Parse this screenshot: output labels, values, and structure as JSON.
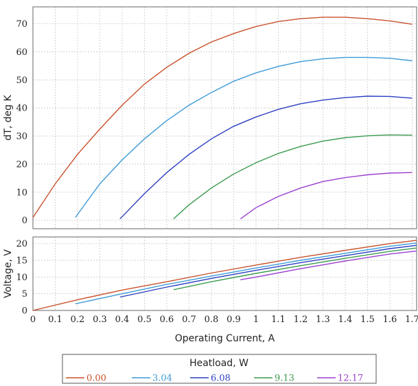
{
  "chart_data": [
    {
      "type": "line",
      "ylabel": "dT, deg K",
      "xlim": [
        0,
        1.72
      ],
      "ylim": [
        -3,
        76
      ],
      "yticks": [
        0,
        10,
        20,
        30,
        40,
        50,
        60,
        70
      ],
      "grid": true,
      "series": [
        {
          "name": "0.00",
          "color": "#c8502a",
          "x": [
            0.0,
            0.1,
            0.2,
            0.3,
            0.4,
            0.5,
            0.6,
            0.7,
            0.8,
            0.9,
            1.0,
            1.1,
            1.2,
            1.3,
            1.4,
            1.5,
            1.6,
            1.7
          ],
          "y": [
            1,
            13,
            23.5,
            32.5,
            41,
            48.5,
            54.5,
            59.5,
            63.5,
            66.5,
            69,
            70.8,
            71.8,
            72.3,
            72.3,
            71.8,
            71,
            69.8
          ]
        },
        {
          "name": "3.04",
          "color": "#3c9ad8",
          "x": [
            0.19,
            0.3,
            0.4,
            0.5,
            0.6,
            0.7,
            0.8,
            0.9,
            1.0,
            1.1,
            1.2,
            1.3,
            1.4,
            1.5,
            1.6,
            1.7
          ],
          "y": [
            1,
            13,
            21.5,
            29,
            35.5,
            41,
            45.5,
            49.5,
            52.5,
            54.8,
            56.5,
            57.5,
            58,
            58,
            57.7,
            56.8
          ]
        },
        {
          "name": "6.08",
          "color": "#2a3ec0",
          "x": [
            0.39,
            0.5,
            0.6,
            0.7,
            0.8,
            0.9,
            1.0,
            1.1,
            1.2,
            1.3,
            1.4,
            1.5,
            1.6,
            1.7
          ],
          "y": [
            0.5,
            9.5,
            17,
            23.5,
            29,
            33.5,
            36.8,
            39.5,
            41.5,
            42.8,
            43.7,
            44.2,
            44.1,
            43.5
          ]
        },
        {
          "name": "9.13",
          "color": "#3a9a4e",
          "x": [
            0.63,
            0.7,
            0.8,
            0.9,
            1.0,
            1.1,
            1.2,
            1.3,
            1.4,
            1.5,
            1.6,
            1.7
          ],
          "y": [
            0.5,
            5.5,
            11.5,
            16.5,
            20.5,
            23.8,
            26.3,
            28.2,
            29.4,
            30.1,
            30.4,
            30.3
          ]
        },
        {
          "name": "12.17",
          "color": "#9a3ed0",
          "x": [
            0.93,
            1.0,
            1.1,
            1.2,
            1.3,
            1.4,
            1.5,
            1.6,
            1.7
          ],
          "y": [
            0.5,
            4.5,
            8.5,
            11.5,
            13.8,
            15.2,
            16.2,
            16.8,
            17.0
          ]
        }
      ]
    },
    {
      "type": "line",
      "ylabel": "Voltage, V",
      "xlabel": "Operating Current, A",
      "xlim": [
        0,
        1.72
      ],
      "ylim": [
        0,
        22
      ],
      "yticks": [
        0,
        5,
        10,
        15,
        20
      ],
      "xticks": [
        0,
        0.1,
        0.2,
        0.3,
        0.4,
        0.5,
        0.6,
        0.7,
        0.8,
        0.9,
        1,
        1.1,
        1.2,
        1.3,
        1.4,
        1.5,
        1.6,
        1.7
      ],
      "xticklabels": [
        "0",
        "0.1",
        "0.2",
        "0.3",
        "0.4",
        "0.5",
        "0.6",
        "0.7",
        "0.8",
        "0.9",
        "1",
        "1.1",
        "1.2",
        "1.3",
        "1.4",
        "1.5",
        "1.6",
        "1.7"
      ],
      "grid": true,
      "series": [
        {
          "name": "0.00",
          "color": "#c8502a",
          "x": [
            0.0,
            0.2,
            0.4,
            0.6,
            0.8,
            1.0,
            1.2,
            1.4,
            1.6,
            1.72
          ],
          "y": [
            0,
            3.2,
            6.1,
            8.6,
            11.2,
            13.6,
            15.9,
            18,
            20,
            21
          ]
        },
        {
          "name": "3.04",
          "color": "#3c9ad8",
          "x": [
            0.19,
            0.4,
            0.6,
            0.8,
            1.0,
            1.2,
            1.4,
            1.6,
            1.72
          ],
          "y": [
            2,
            5,
            7.8,
            10.3,
            12.7,
            15,
            17.1,
            19.2,
            20.2
          ]
        },
        {
          "name": "6.08",
          "color": "#2a3ec0",
          "x": [
            0.39,
            0.6,
            0.8,
            1.0,
            1.2,
            1.4,
            1.6,
            1.72
          ],
          "y": [
            4,
            7,
            9.6,
            12,
            14.3,
            16.4,
            18.5,
            19.5
          ]
        },
        {
          "name": "9.13",
          "color": "#3a9a4e",
          "x": [
            0.63,
            0.8,
            1.0,
            1.2,
            1.4,
            1.6,
            1.72
          ],
          "y": [
            6.2,
            8.6,
            11.1,
            13.4,
            15.6,
            17.7,
            18.7
          ]
        },
        {
          "name": "12.17",
          "color": "#9a3ed0",
          "x": [
            0.93,
            1.0,
            1.2,
            1.4,
            1.6,
            1.72
          ],
          "y": [
            9.2,
            10,
            12.5,
            14.8,
            16.9,
            17.8
          ]
        }
      ]
    }
  ],
  "legend": {
    "title": "Heatload, W",
    "items": [
      {
        "label": "0.00",
        "color": "#c8502a"
      },
      {
        "label": "3.04",
        "color": "#3c9ad8"
      },
      {
        "label": "6.08",
        "color": "#2a3ec0"
      },
      {
        "label": "9.13",
        "color": "#3a9a4e"
      },
      {
        "label": "12.17",
        "color": "#9a3ed0"
      }
    ]
  }
}
